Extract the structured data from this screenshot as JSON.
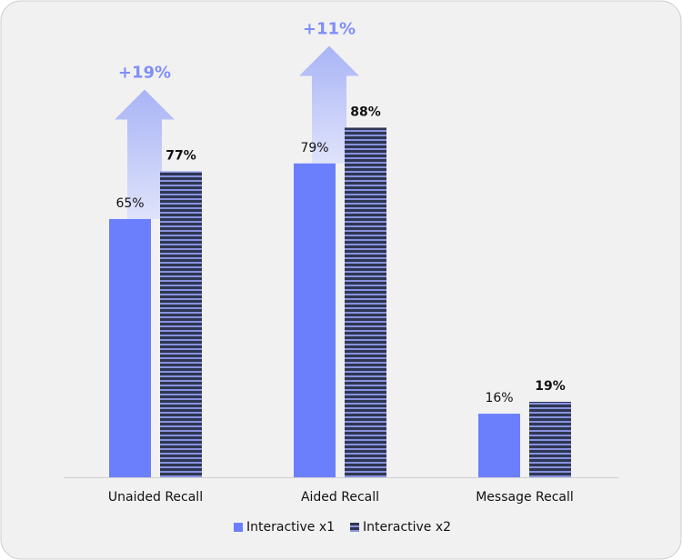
{
  "chart_data": {
    "type": "bar",
    "categories": [
      "Unaided Recall",
      "Aided Recall",
      "Message Recall"
    ],
    "series": [
      {
        "name": "Interactive x1",
        "color": "#6b7ffc",
        "values": [
          65,
          79,
          16
        ],
        "value_labels": [
          "65%",
          "79%",
          "16%"
        ]
      },
      {
        "name": "Interactive x2",
        "color": "#2f3652",
        "values": [
          77,
          88,
          19
        ],
        "value_labels": [
          "77%",
          "88%",
          "19%"
        ]
      }
    ],
    "annotations": [
      "+19%",
      "+11%"
    ],
    "ylim": [
      0,
      100
    ],
    "grid": false
  }
}
